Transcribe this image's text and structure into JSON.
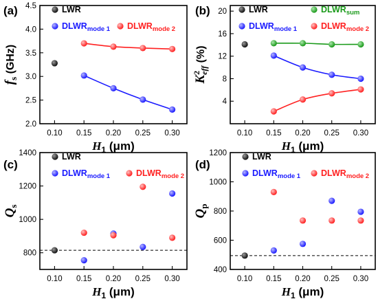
{
  "colors": {
    "LWR": "#111111",
    "mode1": "#1a1aff",
    "mode2": "#ff2020",
    "sum": "#1a9a1a"
  },
  "chart_data": [
    {
      "type": "scatter",
      "panel": "(a)",
      "ylabel_main": "f",
      "ylabel_sub": "s",
      "ylabel_unit": " (GHz)",
      "xlabel_main": "H",
      "xlabel_sub": "1",
      "xlabel_unit": " (μm)",
      "xlim": [
        0.075,
        0.325
      ],
      "ylim": [
        2.0,
        4.5
      ],
      "xticks": [
        "0.10",
        "0.15",
        "0.20",
        "0.25",
        "0.30"
      ],
      "yticks": [
        "2.0",
        "2.5",
        "3.0",
        "3.5",
        "4.0",
        "4.5"
      ],
      "series": [
        {
          "name": "LWR",
          "color": "LWR",
          "x": [
            0.1
          ],
          "y": [
            3.28
          ]
        },
        {
          "name": "DLWR",
          "name_sub": "mode 1",
          "color": "mode1",
          "x": [
            0.15,
            0.2,
            0.25,
            0.3
          ],
          "y": [
            3.02,
            2.75,
            2.51,
            2.3
          ],
          "fit": true
        },
        {
          "name": "DLWR",
          "name_sub": "mode 2",
          "color": "mode2",
          "x": [
            0.15,
            0.2,
            0.25,
            0.3
          ],
          "y": [
            3.7,
            3.63,
            3.6,
            3.58
          ],
          "fit": true
        }
      ]
    },
    {
      "type": "scatter",
      "panel": "(b)",
      "ylabel_main": "K",
      "ylabel_sup": "2",
      "ylabel_sub": "eff",
      "ylabel_unit": " (%)",
      "xlabel_main": "H",
      "xlabel_sub": "1",
      "xlabel_unit": " (μm)",
      "xlim": [
        0.075,
        0.325
      ],
      "ylim": [
        0,
        21
      ],
      "xticks": [
        "0.10",
        "0.15",
        "0.20",
        "0.25",
        "0.30"
      ],
      "yticks": [
        "4",
        "8",
        "12",
        "16",
        "20"
      ],
      "series": [
        {
          "name": "LWR",
          "color": "LWR",
          "x": [
            0.1
          ],
          "y": [
            14.1
          ]
        },
        {
          "name": "DLWR",
          "name_sub": "sum",
          "color": "sum",
          "x": [
            0.15,
            0.2,
            0.25,
            0.3
          ],
          "y": [
            14.3,
            14.3,
            14.1,
            14.1
          ],
          "fit": true
        },
        {
          "name": "DLWR",
          "name_sub": "mode 1",
          "color": "mode1",
          "x": [
            0.15,
            0.2,
            0.25,
            0.3
          ],
          "y": [
            12.1,
            10.0,
            8.7,
            8.0
          ],
          "fit": true
        },
        {
          "name": "DLWR",
          "name_sub": "mode 2",
          "color": "mode2",
          "x": [
            0.15,
            0.2,
            0.25,
            0.3
          ],
          "y": [
            2.2,
            4.3,
            5.4,
            6.1
          ],
          "fit": true
        }
      ]
    },
    {
      "type": "scatter",
      "panel": "(c)",
      "ylabel_main": "Q",
      "ylabel_sub": "s",
      "ylabel_unit": "",
      "xlabel_main": "H",
      "xlabel_sub": "1",
      "xlabel_unit": " (μm)",
      "xlim": [
        0.075,
        0.325
      ],
      "ylim": [
        700,
        1400
      ],
      "xticks": [
        "0.10",
        "0.15",
        "0.20",
        "0.25",
        "0.30"
      ],
      "yticks": [
        "800",
        "1000",
        "1200",
        "1400"
      ],
      "reference_line": 815,
      "series": [
        {
          "name": "LWR",
          "color": "LWR",
          "x": [
            0.1
          ],
          "y": [
            815
          ]
        },
        {
          "name": "DLWR",
          "name_sub": "mode 1",
          "color": "mode1",
          "x": [
            0.15,
            0.2,
            0.25,
            0.3
          ],
          "y": [
            755,
            915,
            835,
            1155
          ]
        },
        {
          "name": "DLWR",
          "name_sub": "mode 2",
          "color": "mode2",
          "x": [
            0.15,
            0.2,
            0.25,
            0.3
          ],
          "y": [
            920,
            905,
            1195,
            890
          ]
        }
      ]
    },
    {
      "type": "scatter",
      "panel": "(d)",
      "ylabel_main": "Q",
      "ylabel_sub": "p",
      "ylabel_unit": "",
      "xlabel_main": "H",
      "xlabel_sub": "1",
      "xlabel_unit": " (μm)",
      "xlim": [
        0.075,
        0.325
      ],
      "ylim": [
        400,
        1200
      ],
      "xticks": [
        "0.10",
        "0.15",
        "0.20",
        "0.25",
        "0.30"
      ],
      "yticks": [
        "400",
        "600",
        "800",
        "1000",
        "1200"
      ],
      "reference_line": 495,
      "series": [
        {
          "name": "LWR",
          "color": "LWR",
          "x": [
            0.1
          ],
          "y": [
            495
          ]
        },
        {
          "name": "DLWR",
          "name_sub": "mode 1",
          "color": "mode1",
          "x": [
            0.15,
            0.2,
            0.25,
            0.3
          ],
          "y": [
            530,
            575,
            870,
            795
          ]
        },
        {
          "name": "DLWR",
          "name_sub": "mode 2",
          "color": "mode2",
          "x": [
            0.15,
            0.2,
            0.25,
            0.3
          ],
          "y": [
            930,
            735,
            735,
            735
          ]
        }
      ]
    }
  ]
}
